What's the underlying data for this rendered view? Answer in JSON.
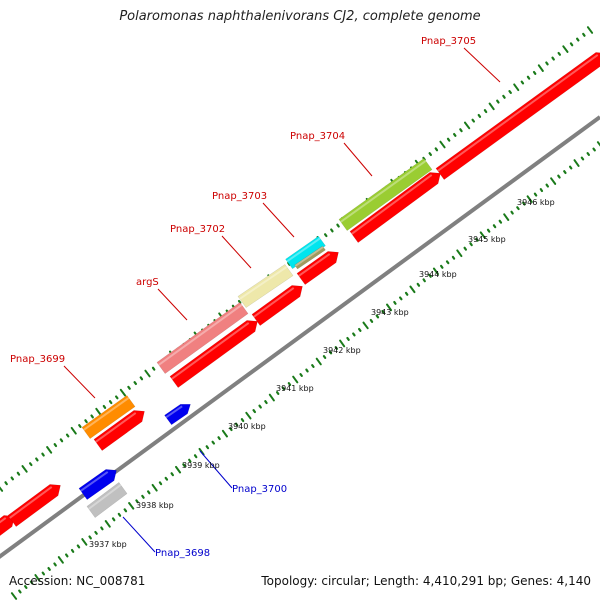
{
  "title": "Polaromonas naphthalenivorans CJ2, complete genome",
  "footer": {
    "accession": "Accession: NC_008781",
    "summary": "Topology: circular; Length: 4,410,291 bp; Genes: 4,140"
  },
  "colors": {
    "forward_label": "#cc0000",
    "reverse_label": "#0000cc",
    "tick": "#1a7a1a",
    "backbone": "#808080",
    "cds": "#ff0000"
  },
  "ruler": [
    "3937 kbp",
    "3938 kbp",
    "3939 kbp",
    "3940 kbp",
    "3941 kbp",
    "3942 kbp",
    "3943 kbp",
    "3944 kbp",
    "3945 kbp",
    "3946 kbp"
  ],
  "genes": [
    {
      "name": "Pnap_3699",
      "color": "#ff8c00",
      "label_color": "#cc0000"
    },
    {
      "name": "argS",
      "color": "#f08080",
      "label_color": "#cc0000"
    },
    {
      "name": "Pnap_3702",
      "color": "#eee8aa",
      "label_color": "#cc0000"
    },
    {
      "name": "Pnap_3703",
      "color": "#00e5ee",
      "label_color": "#cc0000"
    },
    {
      "name": "Pnap_3704",
      "color": "#9acd32",
      "label_color": "#cc0000"
    },
    {
      "name": "Pnap_3705",
      "color": "#ff0000",
      "label_color": "#cc0000"
    },
    {
      "name": "Pnap_3700",
      "color": "#0000ee",
      "label_color": "#0000cc"
    },
    {
      "name": "Pnap_3698",
      "color": "#c0c0c0",
      "label_color": "#0000cc"
    }
  ]
}
